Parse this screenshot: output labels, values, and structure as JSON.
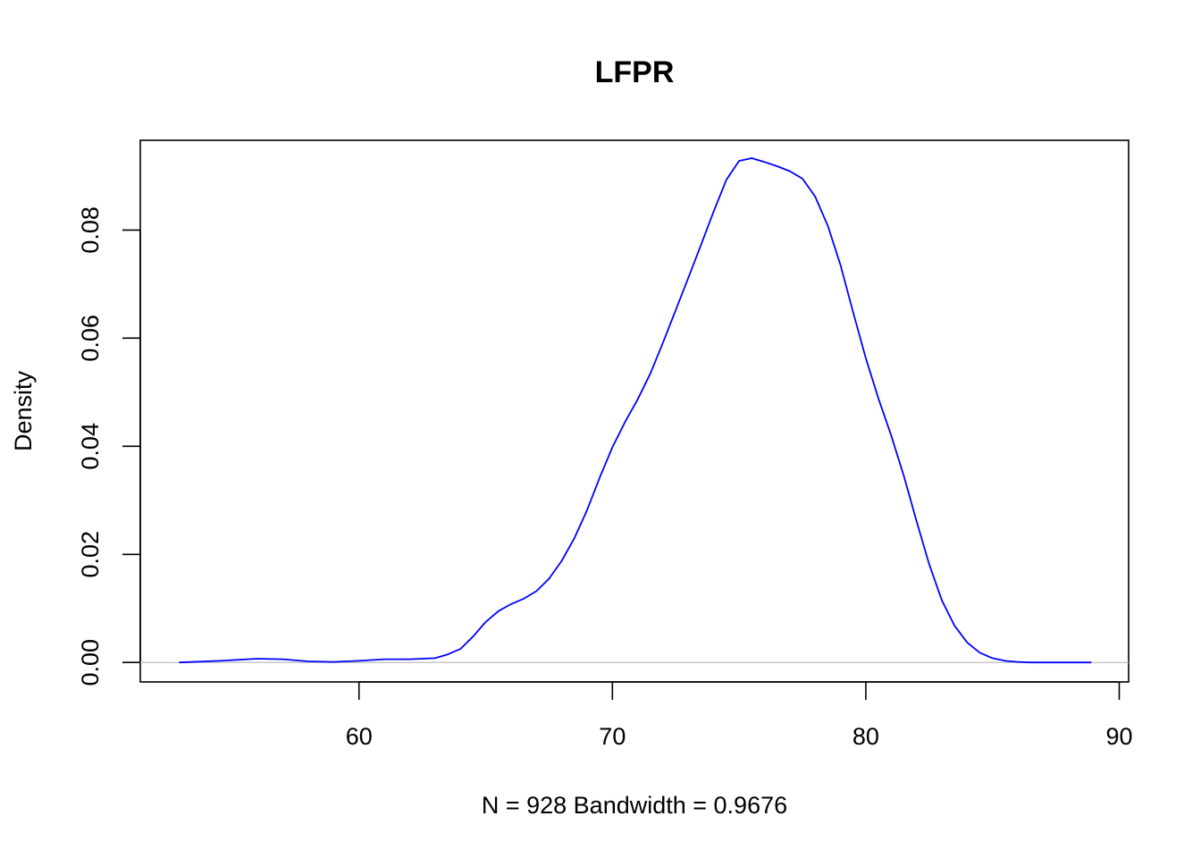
{
  "chart_data": {
    "type": "line",
    "title": "LFPR",
    "xlabel": "N = 928   Bandwidth = 0.9676",
    "ylabel": "Density",
    "xlim": [
      51.37,
      90.37
    ],
    "ylim": [
      -0.0036,
      0.0966
    ],
    "x_ticks": [
      60,
      70,
      80,
      90
    ],
    "x_tick_labels": [
      "60",
      "70",
      "80",
      "90"
    ],
    "y_ticks": [
      0.0,
      0.02,
      0.04,
      0.06,
      0.08
    ],
    "y_tick_labels": [
      "0.00",
      "0.02",
      "0.04",
      "0.06",
      "0.08"
    ],
    "grid": false,
    "baseline": {
      "y": 0,
      "color": "#bebebe"
    },
    "series": [
      {
        "color": "#0000ff",
        "x": [
          52.9,
          54.5,
          56.0,
          57.0,
          58.0,
          59.0,
          60.0,
          61.0,
          62.0,
          63.0,
          63.5,
          64.0,
          64.5,
          65.0,
          65.5,
          66.0,
          66.5,
          67.0,
          67.5,
          68.0,
          68.5,
          69.0,
          69.5,
          70.0,
          70.5,
          71.0,
          71.5,
          72.0,
          72.5,
          73.0,
          73.5,
          74.0,
          74.5,
          75.0,
          75.5,
          76.0,
          76.5,
          77.0,
          77.5,
          78.0,
          78.5,
          79.0,
          79.5,
          80.0,
          80.5,
          81.0,
          81.5,
          82.0,
          82.5,
          83.0,
          83.5,
          84.0,
          84.5,
          85.0,
          85.5,
          86.0,
          86.5,
          87.0,
          87.5,
          88.0,
          88.9
        ],
        "y": [
          0.0,
          0.0003,
          0.0007,
          0.0006,
          0.0002,
          0.0001,
          0.0003,
          0.0006,
          0.0006,
          0.0008,
          0.0015,
          0.0025,
          0.0048,
          0.0075,
          0.0095,
          0.0108,
          0.0118,
          0.0132,
          0.0155,
          0.0188,
          0.023,
          0.0282,
          0.0342,
          0.0398,
          0.0445,
          0.0487,
          0.0535,
          0.0592,
          0.0652,
          0.0712,
          0.0773,
          0.0835,
          0.0893,
          0.0928,
          0.0933,
          0.0926,
          0.0918,
          0.0909,
          0.0895,
          0.0862,
          0.0808,
          0.0735,
          0.0648,
          0.0563,
          0.0488,
          0.042,
          0.0345,
          0.0262,
          0.0182,
          0.0115,
          0.0068,
          0.0037,
          0.0018,
          0.0008,
          0.0003,
          0.0001,
          0.0,
          0.0,
          0.0,
          0.0,
          0.0
        ]
      }
    ]
  }
}
